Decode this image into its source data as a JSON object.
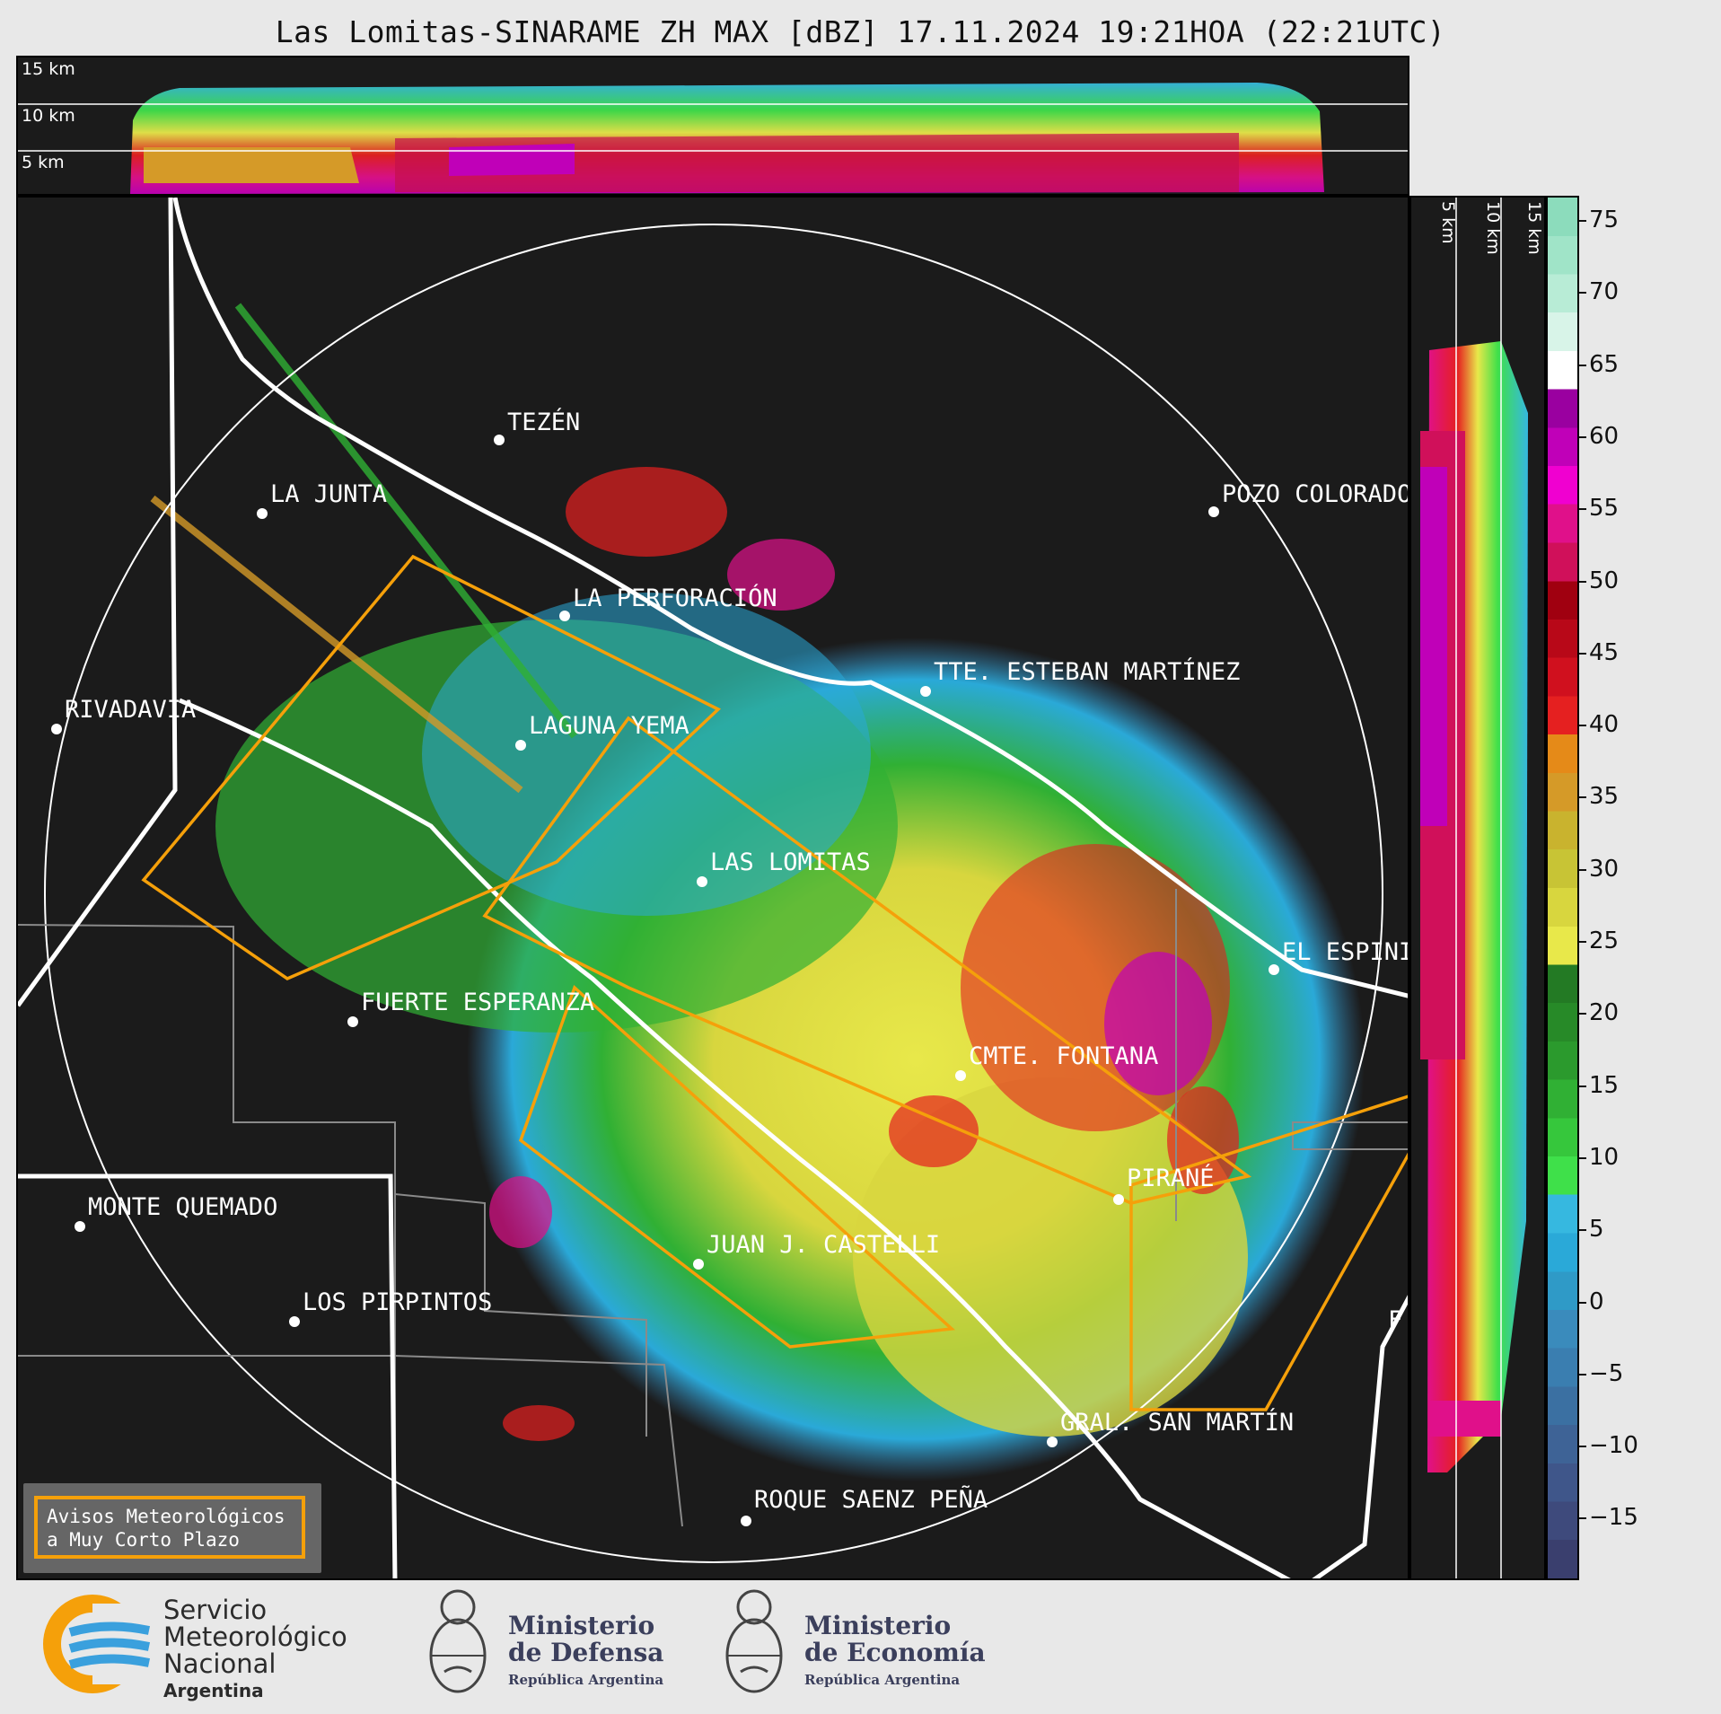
{
  "title": "Las Lomitas-SINARAME ZH MAX [dBZ] 17.11.2024 19:21HOA (22:21UTC)",
  "height_axis": {
    "labels": [
      "15 km",
      "10 km",
      "5 km"
    ]
  },
  "colorbar": {
    "ticks": [
      "75",
      "70",
      "65",
      "60",
      "55",
      "50",
      "45",
      "40",
      "35",
      "30",
      "25",
      "20",
      "15",
      "10",
      "5",
      "0",
      "−5",
      "−10",
      "−15"
    ],
    "colors": [
      "#3a3f6e",
      "#3e4a7c",
      "#3f568a",
      "#3e6396",
      "#3b70a2",
      "#3a7eb0",
      "#3a8bbc",
      "#2f9ac7",
      "#2aa9d8",
      "#36b8e0",
      "#3fe04a",
      "#36c73c",
      "#30b034",
      "#2b9a2d",
      "#278a28",
      "#237a24",
      "#e8e84a",
      "#d8d63e",
      "#c8c435",
      "#c9b32e",
      "#d59a28",
      "#e58a18",
      "#e52020",
      "#d0101e",
      "#b80818",
      "#a00010",
      "#d0105a",
      "#e0108a",
      "#f000d0",
      "#c000b8",
      "#9a00a0",
      "#ffffff",
      "#d8f4e8",
      "#b8ecd6",
      "#a0e4c8",
      "#8cdcbc"
    ]
  },
  "cities": [
    {
      "name": "TEZÉN"
    },
    {
      "name": "LA JUNTA"
    },
    {
      "name": "POZO COLORADO"
    },
    {
      "name": "LA PERFORACIÓN"
    },
    {
      "name": "TTE. ESTEBAN MARTÍNEZ"
    },
    {
      "name": "RIVADAVIA"
    },
    {
      "name": "LAGUNA YEMA"
    },
    {
      "name": "LAS LOMITAS"
    },
    {
      "name": "EL ESPINILLO"
    },
    {
      "name": "FUERTE ESPERANZA"
    },
    {
      "name": "CMTE. FONTANA"
    },
    {
      "name": "PIRANÉ"
    },
    {
      "name": "MONTE QUEMADO"
    },
    {
      "name": "JUAN J. CASTELLI"
    },
    {
      "name": "LOS PIRPINTOS"
    },
    {
      "name": "GRAL. SAN MARTÍN"
    },
    {
      "name": "ROQUE SAENZ PEÑA"
    },
    {
      "name": "F"
    }
  ],
  "legend": {
    "line1": "Avisos Meteorológicos",
    "line2": "a Muy Corto Plazo",
    "color": "#f5a00a"
  },
  "logos": {
    "smn": {
      "line1": "Servicio",
      "line2": "Meteorológico",
      "line3": "Nacional",
      "sub": "Argentina"
    },
    "defensa": {
      "line1": "Ministerio",
      "line2": "de Defensa",
      "sub": "República Argentina"
    },
    "economia": {
      "line1": "Ministerio",
      "line2": "de Economía",
      "sub": "República Argentina"
    }
  }
}
